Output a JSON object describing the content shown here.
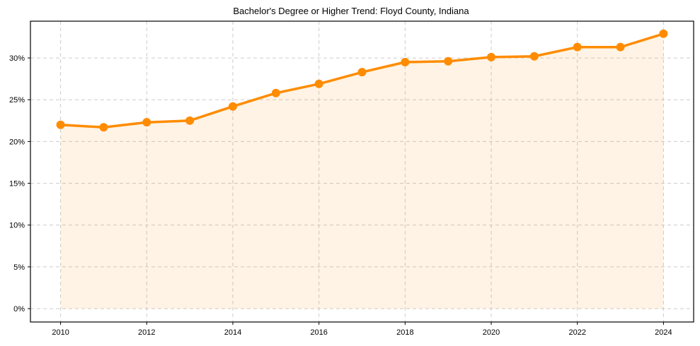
{
  "chart_data": {
    "type": "line",
    "title": "Bachelor's Degree or Higher Trend: Floyd County, Indiana",
    "xlabel": "",
    "ylabel": "",
    "x": [
      2010,
      2011,
      2012,
      2013,
      2014,
      2015,
      2016,
      2017,
      2018,
      2019,
      2020,
      2021,
      2022,
      2023,
      2024
    ],
    "series": [
      {
        "name": "Bachelor's Degree or Higher",
        "values": [
          22.0,
          21.7,
          22.3,
          22.5,
          24.2,
          25.8,
          26.9,
          28.3,
          29.5,
          29.6,
          30.1,
          30.2,
          31.3,
          31.3,
          32.9
        ],
        "color": "#ff8c00",
        "fill_under": true
      }
    ],
    "x_ticks": [
      "2010",
      "2012",
      "2014",
      "2016",
      "2018",
      "2020",
      "2022",
      "2024"
    ],
    "y_ticks": [
      "0%",
      "5%",
      "10%",
      "15%",
      "20%",
      "25%",
      "30%"
    ],
    "ylim": [
      -1.6,
      34.4
    ],
    "xlim": [
      2009.3,
      2024.7
    ],
    "grid": true,
    "legend": null
  }
}
